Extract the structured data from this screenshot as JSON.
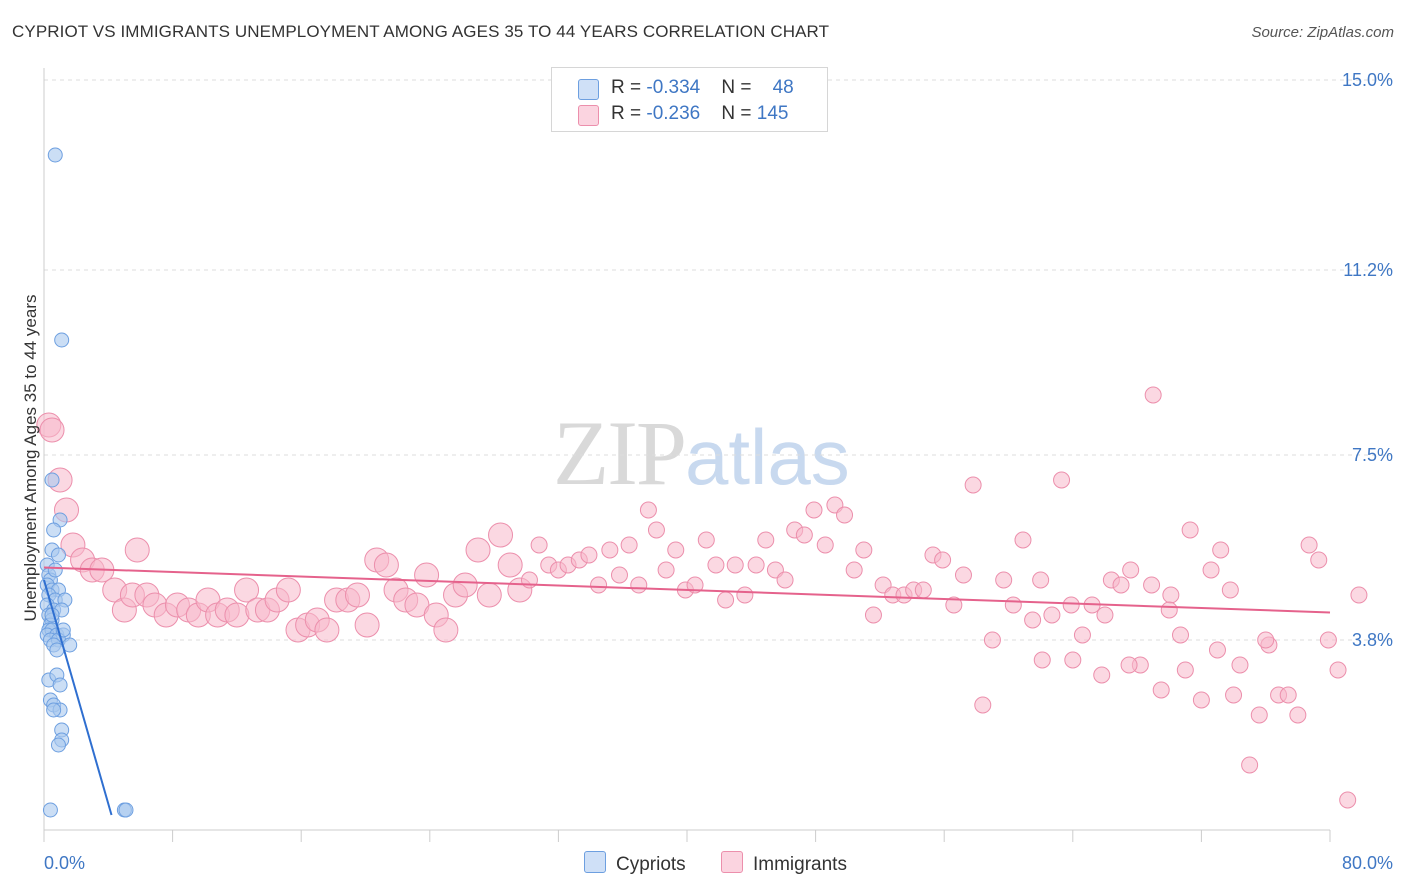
{
  "title": "CYPRIOT VS IMMIGRANTS UNEMPLOYMENT AMONG AGES 35 TO 44 YEARS CORRELATION CHART",
  "source": "Source: ZipAtlas.com",
  "watermark": {
    "zip": "ZIP",
    "atlas": "atlas"
  },
  "legend": {
    "rows": [
      {
        "r_label": "R = ",
        "r_value": "-0.334",
        "n_label": "N = ",
        "n_value": "48",
        "color": "#a9c8ef"
      },
      {
        "r_label": "R = ",
        "r_value": "-0.236",
        "n_label": "N = ",
        "n_value": "145",
        "color": "#f7b8cb"
      }
    ]
  },
  "bottom_legend": {
    "cypriots": "Cypriots",
    "immigrants": "Immigrants"
  },
  "colors": {
    "cypriots_fill": "#a9c8ef",
    "cypriots_stroke": "#6d9fe0",
    "cypriots_line": "#2f6fd0",
    "immigrants_fill": "#f7b8cb",
    "immigrants_stroke": "#ec8fac",
    "immigrants_line": "#e5628c",
    "tick_text": "#3f77c4",
    "grid": "#dddddd"
  },
  "chart_data": {
    "type": "scatter",
    "title": "CYPRIOT VS IMMIGRANTS UNEMPLOYMENT AMONG AGES 35 TO 44 YEARS CORRELATION CHART",
    "xlabel": "",
    "ylabel": "Unemployment Among Ages 35 to 44 years",
    "xlim": [
      0,
      80
    ],
    "ylim": [
      0,
      15
    ],
    "x_tick_labels": [
      "0.0%",
      "80.0%"
    ],
    "y_ticks": [
      3.8,
      7.5,
      11.2,
      15.0
    ],
    "y_tick_labels": [
      "3.8%",
      "7.5%",
      "11.2%",
      "15.0%"
    ],
    "grid": true,
    "legend_position": "top-center",
    "series": [
      {
        "name": "Cypriots",
        "r": -0.334,
        "n": 48,
        "trend": {
          "x": [
            0,
            4.2
          ],
          "y": [
            5.0,
            0.3
          ]
        },
        "points": [
          [
            0.7,
            13.5
          ],
          [
            1.1,
            9.8
          ],
          [
            0.5,
            7.0
          ],
          [
            1.0,
            6.2
          ],
          [
            0.6,
            6.0
          ],
          [
            0.5,
            5.6
          ],
          [
            0.9,
            5.5
          ],
          [
            0.2,
            5.3
          ],
          [
            0.3,
            5.1
          ],
          [
            0.4,
            5.0
          ],
          [
            0.2,
            4.9
          ],
          [
            0.5,
            4.8
          ],
          [
            0.9,
            4.8
          ],
          [
            0.3,
            4.7
          ],
          [
            0.7,
            4.6
          ],
          [
            1.3,
            4.6
          ],
          [
            0.2,
            4.5
          ],
          [
            0.6,
            4.4
          ],
          [
            1.1,
            4.4
          ],
          [
            0.3,
            4.3
          ],
          [
            0.5,
            4.2
          ],
          [
            0.4,
            4.1
          ],
          [
            0.3,
            4.0
          ],
          [
            0.5,
            4.0
          ],
          [
            0.2,
            3.9
          ],
          [
            0.8,
            3.9
          ],
          [
            1.2,
            3.9
          ],
          [
            0.4,
            3.8
          ],
          [
            0.9,
            3.8
          ],
          [
            0.6,
            3.7
          ],
          [
            1.6,
            3.7
          ],
          [
            0.8,
            3.6
          ],
          [
            0.3,
            3.0
          ],
          [
            0.8,
            3.1
          ],
          [
            1.0,
            2.9
          ],
          [
            0.4,
            2.6
          ],
          [
            0.6,
            2.5
          ],
          [
            1.0,
            2.4
          ],
          [
            0.6,
            2.4
          ],
          [
            1.1,
            2.0
          ],
          [
            1.1,
            1.8
          ],
          [
            0.9,
            1.7
          ],
          [
            0.4,
            0.4
          ],
          [
            5.0,
            0.4
          ],
          [
            5.1,
            0.4
          ],
          [
            0.5,
            4.3
          ],
          [
            0.7,
            5.2
          ],
          [
            1.2,
            4.0
          ]
        ]
      },
      {
        "name": "Immigrants",
        "r": -0.236,
        "n": 145,
        "trend": {
          "x": [
            0,
            80
          ],
          "y": [
            5.25,
            4.35
          ]
        },
        "points": [
          [
            0.3,
            8.1
          ],
          [
            0.5,
            8.0
          ],
          [
            1.0,
            7.0
          ],
          [
            1.4,
            6.4
          ],
          [
            1.8,
            5.7
          ],
          [
            2.4,
            5.4
          ],
          [
            3.0,
            5.2
          ],
          [
            3.6,
            5.2
          ],
          [
            5.8,
            5.6
          ],
          [
            4.4,
            4.8
          ],
          [
            5.0,
            4.4
          ],
          [
            5.5,
            4.7
          ],
          [
            6.4,
            4.7
          ],
          [
            6.9,
            4.5
          ],
          [
            7.6,
            4.3
          ],
          [
            8.3,
            4.5
          ],
          [
            9.0,
            4.4
          ],
          [
            9.6,
            4.3
          ],
          [
            10.2,
            4.6
          ],
          [
            10.8,
            4.3
          ],
          [
            11.4,
            4.4
          ],
          [
            12.0,
            4.3
          ],
          [
            12.6,
            4.8
          ],
          [
            13.3,
            4.4
          ],
          [
            13.9,
            4.4
          ],
          [
            14.5,
            4.6
          ],
          [
            15.2,
            4.8
          ],
          [
            15.8,
            4.0
          ],
          [
            16.4,
            4.1
          ],
          [
            17.0,
            4.2
          ],
          [
            17.6,
            4.0
          ],
          [
            18.2,
            4.6
          ],
          [
            18.9,
            4.6
          ],
          [
            19.5,
            4.7
          ],
          [
            20.1,
            4.1
          ],
          [
            20.7,
            5.4
          ],
          [
            21.3,
            5.3
          ],
          [
            21.9,
            4.8
          ],
          [
            22.5,
            4.6
          ],
          [
            23.2,
            4.5
          ],
          [
            23.8,
            5.1
          ],
          [
            24.4,
            4.3
          ],
          [
            25.0,
            4.0
          ],
          [
            25.6,
            4.7
          ],
          [
            26.2,
            4.9
          ],
          [
            27.0,
            5.6
          ],
          [
            27.7,
            4.7
          ],
          [
            28.4,
            5.9
          ],
          [
            29.0,
            5.3
          ],
          [
            29.6,
            4.8
          ],
          [
            30.2,
            5.0
          ],
          [
            30.8,
            5.7
          ],
          [
            31.4,
            5.3
          ],
          [
            32.0,
            5.2
          ],
          [
            32.6,
            5.3
          ],
          [
            33.3,
            5.4
          ],
          [
            33.9,
            5.5
          ],
          [
            34.5,
            4.9
          ],
          [
            35.2,
            5.6
          ],
          [
            35.8,
            5.1
          ],
          [
            36.4,
            5.7
          ],
          [
            37.0,
            4.9
          ],
          [
            37.6,
            6.4
          ],
          [
            38.1,
            6.0
          ],
          [
            38.7,
            5.2
          ],
          [
            39.3,
            5.6
          ],
          [
            39.9,
            4.8
          ],
          [
            40.5,
            4.9
          ],
          [
            41.2,
            5.8
          ],
          [
            41.8,
            5.3
          ],
          [
            42.4,
            4.6
          ],
          [
            43.0,
            5.3
          ],
          [
            43.6,
            4.7
          ],
          [
            44.3,
            5.3
          ],
          [
            44.9,
            5.8
          ],
          [
            45.5,
            5.2
          ],
          [
            46.1,
            5.0
          ],
          [
            46.7,
            6.0
          ],
          [
            47.3,
            5.9
          ],
          [
            47.9,
            6.4
          ],
          [
            48.6,
            5.7
          ],
          [
            49.2,
            6.5
          ],
          [
            49.8,
            6.3
          ],
          [
            50.4,
            5.2
          ],
          [
            51.0,
            5.6
          ],
          [
            51.6,
            4.3
          ],
          [
            52.2,
            4.9
          ],
          [
            52.8,
            4.7
          ],
          [
            53.5,
            4.7
          ],
          [
            54.1,
            4.8
          ],
          [
            54.7,
            4.8
          ],
          [
            55.3,
            5.5
          ],
          [
            55.9,
            5.4
          ],
          [
            56.6,
            4.5
          ],
          [
            57.2,
            5.1
          ],
          [
            57.8,
            6.9
          ],
          [
            58.4,
            2.5
          ],
          [
            59.0,
            3.8
          ],
          [
            59.7,
            5.0
          ],
          [
            60.3,
            4.5
          ],
          [
            60.9,
            5.8
          ],
          [
            61.5,
            4.2
          ],
          [
            62.1,
            3.4
          ],
          [
            62.7,
            4.3
          ],
          [
            63.3,
            7.0
          ],
          [
            63.9,
            4.5
          ],
          [
            64.6,
            3.9
          ],
          [
            65.2,
            4.5
          ],
          [
            65.8,
            3.1
          ],
          [
            66.4,
            5.0
          ],
          [
            67.0,
            4.9
          ],
          [
            67.6,
            5.2
          ],
          [
            68.2,
            3.3
          ],
          [
            68.9,
            4.9
          ],
          [
            69.5,
            2.8
          ],
          [
            70.1,
            4.7
          ],
          [
            70.7,
            3.9
          ],
          [
            71.3,
            6.0
          ],
          [
            72.0,
            2.6
          ],
          [
            72.6,
            5.2
          ],
          [
            73.2,
            5.6
          ],
          [
            73.8,
            4.8
          ],
          [
            74.4,
            3.3
          ],
          [
            75.0,
            1.3
          ],
          [
            75.6,
            2.3
          ],
          [
            76.2,
            3.7
          ],
          [
            76.8,
            2.7
          ],
          [
            77.4,
            2.7
          ],
          [
            78.0,
            2.3
          ],
          [
            78.7,
            5.7
          ],
          [
            79.3,
            5.4
          ],
          [
            79.9,
            3.8
          ],
          [
            80.5,
            3.2
          ],
          [
            81.1,
            0.6
          ],
          [
            81.8,
            4.7
          ],
          [
            76.0,
            3.8
          ],
          [
            67.5,
            3.3
          ],
          [
            73.0,
            3.6
          ],
          [
            64.0,
            3.4
          ],
          [
            71.0,
            3.2
          ],
          [
            69.0,
            8.7
          ],
          [
            66.0,
            4.3
          ],
          [
            74.0,
            2.7
          ],
          [
            70.0,
            4.4
          ],
          [
            62.0,
            5.0
          ]
        ]
      }
    ]
  }
}
